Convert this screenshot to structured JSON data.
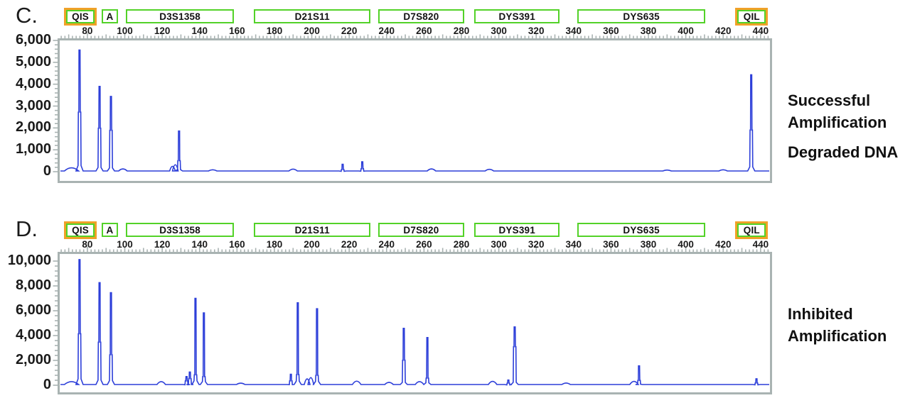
{
  "figure": {
    "panels": [
      {
        "label": "C.",
        "captions": [
          [
            "Successful",
            "Amplification"
          ],
          [
            "Degraded DNA"
          ]
        ]
      },
      {
        "label": "D.",
        "captions": [
          [
            "Inhibited",
            "Amplification"
          ]
        ]
      }
    ]
  },
  "markers": [
    {
      "name": "QIS",
      "bp": [
        67.5,
        85
      ],
      "type": "quality"
    },
    {
      "name": "A",
      "bp": [
        87.5,
        96.5
      ],
      "type": "locus"
    },
    {
      "name": "D3S1358",
      "bp": [
        100.5,
        158.5
      ],
      "type": "locus"
    },
    {
      "name": "D21S11",
      "bp": [
        169,
        231.5
      ],
      "type": "locus"
    },
    {
      "name": "D7S820",
      "bp": [
        235.5,
        281.5
      ],
      "type": "locus"
    },
    {
      "name": "DYS391",
      "bp": [
        287,
        332.5
      ],
      "type": "locus"
    },
    {
      "name": "DYS635",
      "bp": [
        342,
        410.5
      ],
      "type": "locus"
    },
    {
      "name": "QIL",
      "bp": [
        426.5,
        444
      ],
      "type": "quality"
    }
  ],
  "x_axis": {
    "ticks": [
      80,
      100,
      120,
      140,
      160,
      180,
      200,
      220,
      240,
      260,
      280,
      300,
      320,
      340,
      360,
      380,
      400,
      420,
      440
    ],
    "tick_labels": [
      "80",
      "100",
      "120",
      "140",
      "160",
      "180",
      "200",
      "220",
      "240",
      "260",
      "280",
      "300",
      "320",
      "340",
      "360",
      "380",
      "400",
      "420",
      "440"
    ],
    "minor_step_bp": 2
  },
  "chart_data": [
    {
      "type": "line",
      "title": "Successful Amplification — Degraded DNA",
      "xlim": [
        65,
        445
      ],
      "ylim": [
        0,
        6000
      ],
      "x_ticks": [
        80,
        100,
        120,
        140,
        160,
        180,
        200,
        220,
        240,
        260,
        280,
        300,
        320,
        340,
        360,
        380,
        400,
        420,
        440
      ],
      "y_ticks": [
        0,
        1000,
        2000,
        3000,
        4000,
        5000,
        6000
      ],
      "y_tick_labels": [
        "0",
        "1,000",
        "2,000",
        "3,000",
        "4,000",
        "5,000",
        "6,000"
      ],
      "grid": false,
      "peaks": [
        {
          "x": 71.5,
          "y": 160,
          "shape": "hump",
          "w": 10
        },
        {
          "x": 75.8,
          "y": 5560,
          "s": 0.49
        },
        {
          "x": 86.5,
          "y": 3900,
          "s": 0.51
        },
        {
          "x": 92.6,
          "y": 3440,
          "s": 0.55
        },
        {
          "x": 99,
          "y": 110,
          "shape": "hump"
        },
        {
          "x": 125.5,
          "y": 230,
          "shape": "hump",
          "w": 4
        },
        {
          "x": 127,
          "y": 300,
          "shape": "hump",
          "w": 4
        },
        {
          "x": 129,
          "y": 1860,
          "s": 0.27
        },
        {
          "x": 147,
          "y": 70,
          "shape": "hump"
        },
        {
          "x": 190,
          "y": 100,
          "shape": "hump"
        },
        {
          "x": 216.5,
          "y": 340,
          "s": 0.3
        },
        {
          "x": 227,
          "y": 450,
          "s": 0.3
        },
        {
          "x": 264,
          "y": 110,
          "shape": "hump"
        },
        {
          "x": 295,
          "y": 90,
          "shape": "hump"
        },
        {
          "x": 390,
          "y": 60,
          "shape": "hump"
        },
        {
          "x": 420,
          "y": 70,
          "shape": "hump"
        },
        {
          "x": 435,
          "y": 4430,
          "s": 0.43
        }
      ]
    },
    {
      "type": "line",
      "title": "Inhibited Amplification",
      "xlim": [
        65,
        445
      ],
      "ylim": [
        0,
        10000
      ],
      "x_ticks": [
        80,
        100,
        120,
        140,
        160,
        180,
        200,
        220,
        240,
        260,
        280,
        300,
        320,
        340,
        360,
        380,
        400,
        420,
        440
      ],
      "y_ticks": [
        0,
        2000,
        4000,
        6000,
        8000,
        10000
      ],
      "y_tick_labels": [
        "0",
        "2,000",
        "4,000",
        "6,000",
        "8,000",
        "10,000"
      ],
      "grid": false,
      "peaks": [
        {
          "x": 71.5,
          "y": 260,
          "shape": "hump",
          "w": 10
        },
        {
          "x": 75.8,
          "y": 10120,
          "s": 0.41
        },
        {
          "x": 86.5,
          "y": 8260,
          "s": 0.42
        },
        {
          "x": 92.6,
          "y": 7450,
          "s": 0.33
        },
        {
          "x": 119.5,
          "y": 260,
          "shape": "hump"
        },
        {
          "x": 133,
          "y": 700,
          "s": 0.5
        },
        {
          "x": 134.8,
          "y": 1060,
          "s": 0.5
        },
        {
          "x": 137.8,
          "y": 7000,
          "s": 0.12
        },
        {
          "x": 142.3,
          "y": 5820,
          "s": 0.12
        },
        {
          "x": 162,
          "y": 140,
          "shape": "hump"
        },
        {
          "x": 188.8,
          "y": 880,
          "s": 0.4
        },
        {
          "x": 192.5,
          "y": 6640,
          "s": 0.13
        },
        {
          "x": 197.5,
          "y": 480,
          "shape": "hump",
          "w": 4
        },
        {
          "x": 199.5,
          "y": 580,
          "shape": "hump",
          "w": 4
        },
        {
          "x": 202.8,
          "y": 6160,
          "s": 0.13
        },
        {
          "x": 224,
          "y": 300,
          "shape": "hump"
        },
        {
          "x": 241.3,
          "y": 200,
          "shape": "hump"
        },
        {
          "x": 249.2,
          "y": 4580,
          "s": 0.44
        },
        {
          "x": 257.6,
          "y": 260,
          "shape": "hump"
        },
        {
          "x": 261.8,
          "y": 3840,
          "s": 0.15
        },
        {
          "x": 296.7,
          "y": 280,
          "shape": "hump"
        },
        {
          "x": 305.1,
          "y": 420,
          "s": 0.4
        },
        {
          "x": 308.5,
          "y": 4700,
          "s": 0.66
        },
        {
          "x": 336,
          "y": 150,
          "shape": "hump"
        },
        {
          "x": 372.3,
          "y": 280,
          "shape": "hump"
        },
        {
          "x": 375,
          "y": 1560,
          "s": 0.25
        },
        {
          "x": 437.8,
          "y": 520,
          "s": 0.35
        }
      ]
    }
  ],
  "colors": {
    "trace": "#2d3fd9",
    "frame": "#a9b3b2",
    "locus_border": "#53d228",
    "quality_border": "#f0a128",
    "text": "#111111"
  }
}
